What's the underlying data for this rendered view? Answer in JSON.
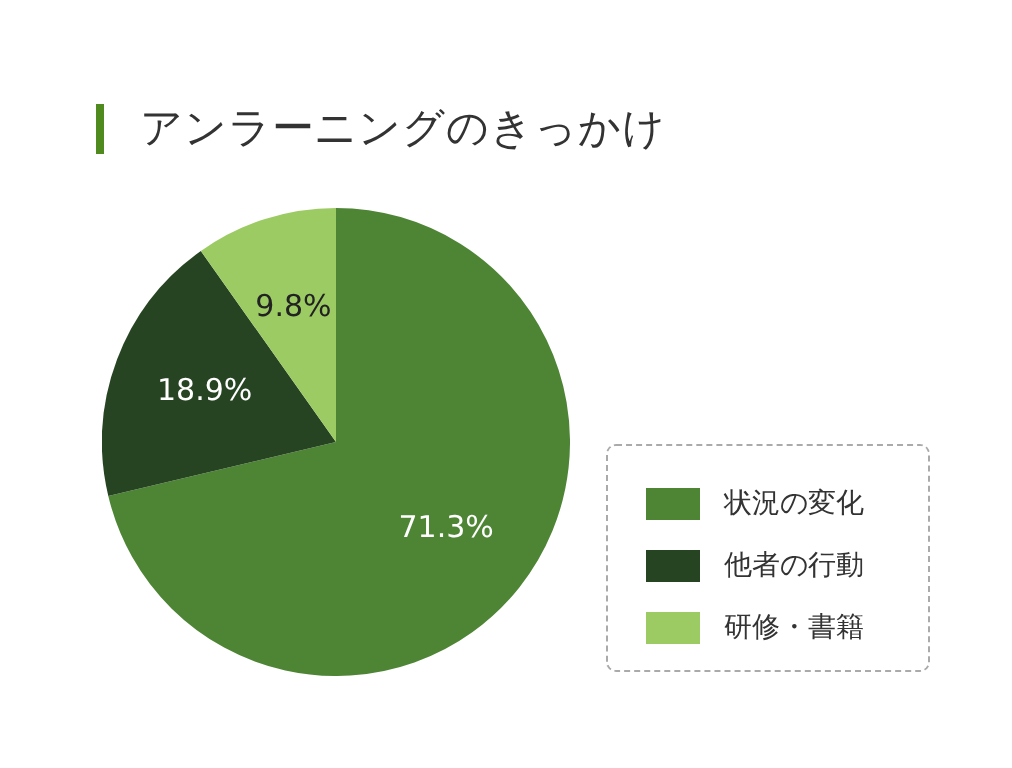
{
  "chart_data": {
    "type": "pie",
    "title": "アンラーニングのきっかけ",
    "categories": [
      "状況の変化",
      "他者の行動",
      "研修・書籍"
    ],
    "values": [
      71.3,
      18.9,
      9.8
    ],
    "value_labels": [
      "71.3%",
      "18.9%",
      "9.8%"
    ],
    "colors": [
      "#4e8535",
      "#264422",
      "#9ccb63"
    ],
    "legend": "right"
  }
}
